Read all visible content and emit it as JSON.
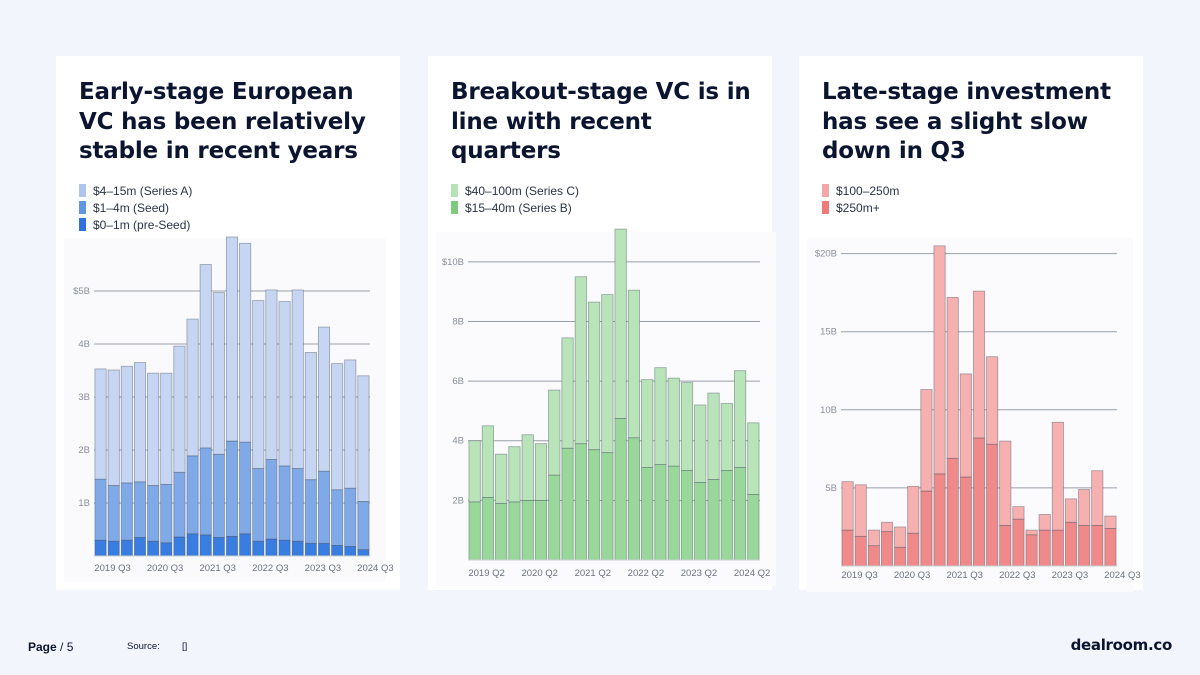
{
  "charts": [
    {
      "title": "Early-stage European VC has been relatively stable in recent years",
      "legend": [
        {
          "label": "$4–15m (Series A)",
          "color": "#aec6ee"
        },
        {
          "label": "$1–4m (Seed)",
          "color": "#5f95e3"
        },
        {
          "label": "$0–1m (pre-Seed)",
          "color": "#2f74dc"
        }
      ]
    },
    {
      "title": "Breakout-stage VC is in line with recent quarters",
      "legend": [
        {
          "label": "$40–100m (Series C)",
          "color": "#b7e3b7"
        },
        {
          "label": "$15–40m (Series B)",
          "color": "#7dcc7d"
        }
      ]
    },
    {
      "title": "Late-stage investment has see a slight slow down in Q3",
      "legend": [
        {
          "label": "$100–250m",
          "color": "#f3a6a6"
        },
        {
          "label": "$250m+",
          "color": "#ef7a7a"
        }
      ]
    }
  ],
  "chart_data": [
    {
      "type": "bar",
      "stacked": true,
      "title": "Early-stage European VC has been relatively stable in recent years",
      "categories": [
        "2019 Q3",
        "2019 Q4",
        "2020 Q1",
        "2020 Q2",
        "2020 Q3",
        "2020 Q4",
        "2021 Q1",
        "2021 Q2",
        "2021 Q3",
        "2021 Q4",
        "2022 Q1",
        "2022 Q2",
        "2022 Q3",
        "2022 Q4",
        "2023 Q1",
        "2023 Q2",
        "2023 Q3",
        "2023 Q4",
        "2024 Q1",
        "2024 Q2",
        "2024 Q3"
      ],
      "tick_labels": [
        "2019 Q3",
        "2020 Q3",
        "2021 Q3",
        "2022 Q3",
        "2023 Q3",
        "2024 Q3"
      ],
      "yticks": [
        1,
        2,
        3,
        4,
        5
      ],
      "ytick_labels": [
        "1B",
        "2B",
        "3B",
        "4B",
        "$5B"
      ],
      "ylim": [
        0,
        6
      ],
      "series": [
        {
          "name": "$0–1m (pre-Seed)",
          "color": "#3a7de0",
          "values": [
            0.3,
            0.28,
            0.3,
            0.35,
            0.28,
            0.25,
            0.36,
            0.42,
            0.4,
            0.35,
            0.37,
            0.42,
            0.28,
            0.32,
            0.3,
            0.28,
            0.24,
            0.24,
            0.2,
            0.18,
            0.12
          ]
        },
        {
          "name": "$1–4m (Seed)",
          "color": "#80a9e8",
          "values": [
            1.15,
            1.05,
            1.08,
            1.05,
            1.05,
            1.1,
            1.22,
            1.47,
            1.64,
            1.57,
            1.8,
            1.73,
            1.37,
            1.5,
            1.4,
            1.37,
            1.2,
            1.36,
            1.05,
            1.1,
            0.91
          ]
        },
        {
          "name": "$4–15m (Series A)",
          "color": "#c6d5f2",
          "values": [
            2.08,
            2.18,
            2.2,
            2.25,
            2.12,
            2.1,
            2.38,
            2.58,
            3.46,
            3.05,
            3.85,
            3.75,
            3.17,
            3.2,
            3.1,
            3.37,
            2.4,
            2.72,
            2.38,
            2.42,
            2.37
          ]
        }
      ],
      "xlabel": "",
      "ylabel": ""
    },
    {
      "type": "bar",
      "stacked": true,
      "title": "Breakout-stage VC is in line with recent quarters",
      "categories": [
        "2019 Q2",
        "2019 Q3",
        "2019 Q4",
        "2020 Q1",
        "2020 Q2",
        "2020 Q3",
        "2020 Q4",
        "2021 Q1",
        "2021 Q2",
        "2021 Q3",
        "2021 Q4",
        "2022 Q1",
        "2022 Q2",
        "2022 Q3",
        "2022 Q4",
        "2023 Q1",
        "2023 Q2",
        "2023 Q3",
        "2023 Q4",
        "2024 Q1",
        "2024 Q2",
        "2024 Q3"
      ],
      "tick_labels": [
        "2019 Q2",
        "2020 Q2",
        "2021 Q2",
        "2022 Q2",
        "2023 Q2",
        "2024 Q2"
      ],
      "yticks": [
        2,
        4,
        6,
        8,
        10
      ],
      "ytick_labels": [
        "2B",
        "4B",
        "6B",
        "8B",
        "$10B"
      ],
      "ylim": [
        0,
        11
      ],
      "series": [
        {
          "name": "$15–40m (Series B)",
          "color": "#9ad79a",
          "values": [
            1.95,
            2.1,
            1.9,
            1.95,
            2.0,
            2.0,
            2.85,
            3.75,
            3.9,
            3.7,
            3.6,
            4.75,
            4.1,
            3.1,
            3.2,
            3.15,
            3.0,
            2.6,
            2.7,
            3.0,
            3.1,
            2.2
          ]
        },
        {
          "name": "$40–100m (Series C)",
          "color": "#b9e3b9",
          "values": [
            2.05,
            2.4,
            1.65,
            1.85,
            2.2,
            1.9,
            2.85,
            3.7,
            5.6,
            4.95,
            5.3,
            6.35,
            4.95,
            2.95,
            3.25,
            2.95,
            2.95,
            2.6,
            2.9,
            2.25,
            3.25,
            2.4
          ]
        }
      ],
      "xlabel": "",
      "ylabel": ""
    },
    {
      "type": "bar",
      "stacked": true,
      "title": "Late-stage investment has see a slight slow down in Q3",
      "categories": [
        "2019 Q3",
        "2019 Q4",
        "2020 Q1",
        "2020 Q2",
        "2020 Q3",
        "2020 Q4",
        "2021 Q1",
        "2021 Q2",
        "2021 Q3",
        "2021 Q4",
        "2022 Q1",
        "2022 Q2",
        "2022 Q3",
        "2022 Q4",
        "2023 Q1",
        "2023 Q2",
        "2023 Q3",
        "2023 Q4",
        "2024 Q1",
        "2024 Q2",
        "2024 Q3"
      ],
      "tick_labels": [
        "2019 Q3",
        "2020 Q3",
        "2021 Q3",
        "2022 Q3",
        "2023 Q3",
        "2024 Q3"
      ],
      "yticks": [
        5,
        10,
        15,
        20
      ],
      "ytick_labels": [
        "5B",
        "10B",
        "15B",
        "$20B"
      ],
      "ylim": [
        0,
        21
      ],
      "series": [
        {
          "name": "$250m+",
          "color": "#f08a8a",
          "values": [
            2.3,
            1.9,
            1.3,
            2.2,
            1.2,
            2.1,
            4.8,
            5.9,
            6.9,
            5.7,
            8.2,
            7.8,
            2.6,
            3.0,
            2.0,
            2.3,
            2.3,
            2.8,
            2.6,
            2.6,
            2.4
          ]
        },
        {
          "name": "$100–250m",
          "color": "#f6b0b0",
          "values": [
            3.1,
            3.3,
            1.0,
            0.6,
            1.3,
            3.0,
            6.5,
            14.6,
            10.3,
            6.6,
            9.4,
            5.6,
            5.4,
            0.8,
            0.3,
            1.0,
            6.9,
            1.5,
            2.3,
            3.5,
            0.8
          ]
        }
      ],
      "xlabel": "",
      "ylabel": ""
    }
  ],
  "footer": {
    "page_label": "Page",
    "page_suffix": "/ 5",
    "source_label": "Source:",
    "source_value": "[]",
    "logo": "dealroom.co"
  }
}
